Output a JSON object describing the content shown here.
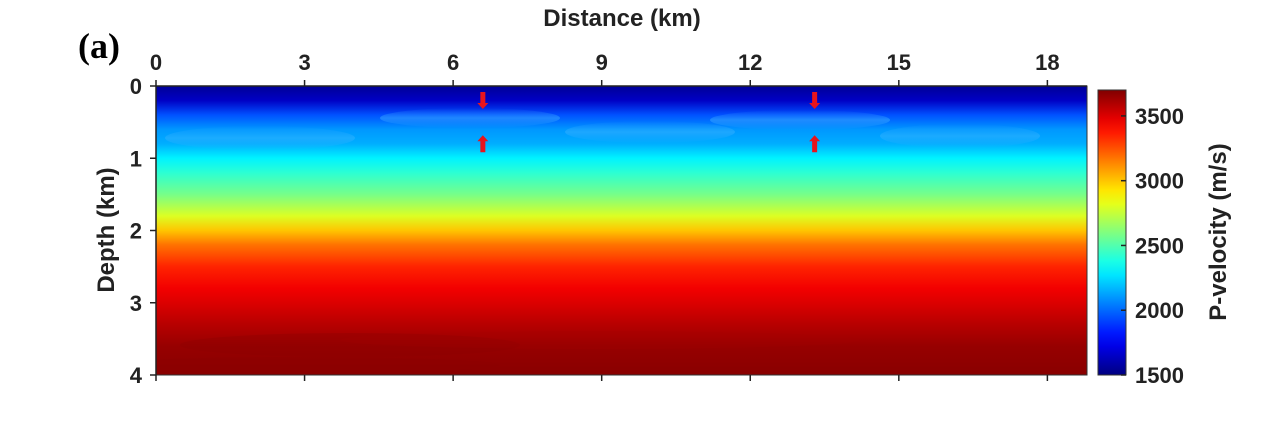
{
  "chart_data": {
    "type": "heatmap",
    "panel_label": "(a)",
    "xlabel": "Distance (km)",
    "ylabel": "Depth (km)",
    "colorbar_label": "P-velocity (m/s)",
    "x_axis_position": "top",
    "xlim": [
      0,
      18.8
    ],
    "ylim": [
      0,
      4
    ],
    "x_ticks": [
      0,
      3,
      6,
      9,
      12,
      15,
      18
    ],
    "y_ticks": [
      0,
      1,
      2,
      3,
      4
    ],
    "colorbar_range": [
      1500,
      3700
    ],
    "colorbar_ticks": [
      1500,
      2000,
      2500,
      3000,
      3500
    ],
    "colormap": "jet",
    "velocity_profile": [
      {
        "depth": 0.0,
        "velocity": 1550
      },
      {
        "depth": 0.2,
        "velocity": 1650
      },
      {
        "depth": 0.4,
        "velocity": 1950
      },
      {
        "depth": 0.6,
        "velocity": 2100
      },
      {
        "depth": 0.8,
        "velocity": 2150
      },
      {
        "depth": 1.0,
        "velocity": 2300
      },
      {
        "depth": 1.2,
        "velocity": 2420
      },
      {
        "depth": 1.5,
        "velocity": 2580
      },
      {
        "depth": 1.8,
        "velocity": 2800
      },
      {
        "depth": 2.0,
        "velocity": 3000
      },
      {
        "depth": 2.2,
        "velocity": 3180
      },
      {
        "depth": 2.5,
        "velocity": 3350
      },
      {
        "depth": 2.8,
        "velocity": 3450
      },
      {
        "depth": 3.0,
        "velocity": 3500
      },
      {
        "depth": 3.3,
        "velocity": 3580
      },
      {
        "depth": 3.6,
        "velocity": 3650
      },
      {
        "depth": 4.0,
        "velocity": 3680
      }
    ],
    "arrow_markers": [
      {
        "x": 6.6,
        "depth": 0.2,
        "direction": "down"
      },
      {
        "x": 6.6,
        "depth": 0.8,
        "direction": "up"
      },
      {
        "x": 13.3,
        "depth": 0.2,
        "direction": "down"
      },
      {
        "x": 13.3,
        "depth": 0.8,
        "direction": "up"
      }
    ],
    "grid": false
  }
}
